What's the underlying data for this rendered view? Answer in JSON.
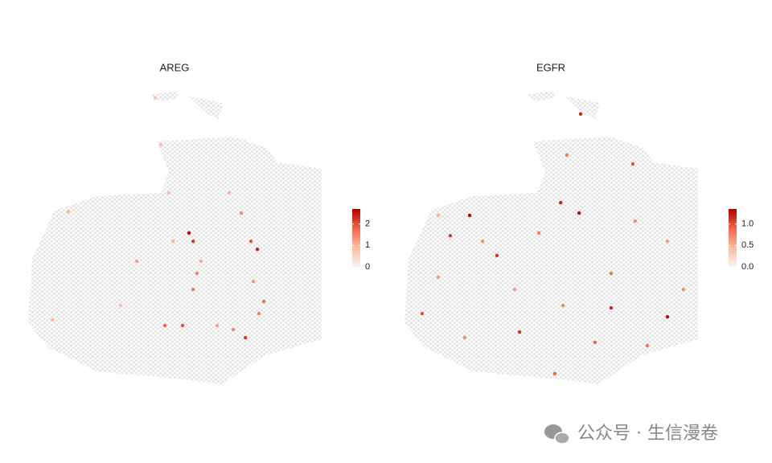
{
  "chart_data": [
    {
      "type": "scatter",
      "title": "AREG",
      "xlim": [
        0,
        100
      ],
      "ylim": [
        0,
        100
      ],
      "x": [
        54.8,
        56.2,
        46.6,
        52.6,
        74.0,
        78.1,
        78.6,
        72.6,
        56.2,
        37.0,
        45.2,
        68.5,
        8.2,
        13.7,
        43.3,
        57.5,
        49.3,
        64.4,
        69.9,
        76.7,
        80.3,
        31.5,
        58.9,
        75.9,
        47.9
      ],
      "y": [
        51.4,
        48.6,
        20.3,
        20.3,
        16.2,
        45.9,
        24.3,
        58.1,
        32.4,
        41.9,
        81.1,
        64.9,
        22.2,
        58.6,
        96.8,
        37.8,
        48.6,
        20.3,
        18.9,
        35.1,
        28.4,
        27.0,
        41.9,
        48.6,
        64.9
      ],
      "values": [
        2.6,
        2.2,
        1.8,
        2.0,
        2.2,
        2.4,
        1.5,
        1.4,
        1.6,
        1.2,
        0.8,
        1.0,
        0.9,
        1.0,
        0.8,
        1.5,
        1.0,
        1.2,
        1.4,
        1.3,
        1.7,
        0.8,
        1.1,
        1.9,
        0.9
      ],
      "colorbar": {
        "lim": [
          0,
          2.7
        ],
        "ticks": [
          0,
          1,
          2
        ],
        "colors": [
          "#f5f5f5",
          "#fcbba1",
          "#ef6548",
          "#b30000"
        ]
      }
    },
    {
      "type": "scatter",
      "title": "EGFR",
      "xlim": [
        0,
        100
      ],
      "ylim": [
        0,
        100
      ],
      "x": [
        60.0,
        22.2,
        15.6,
        53.2,
        59.5,
        31.5,
        77.8,
        89.6,
        70.4,
        39.2,
        6.0,
        51.2,
        82.7,
        64.9,
        26.6,
        45.8,
        95.0,
        11.5,
        55.3,
        78.6,
        70.4,
        20.5,
        37.5,
        54.0,
        89.6,
        11.5
      ],
      "y": [
        91.4,
        57.3,
        50.5,
        61.6,
        58.1,
        43.8,
        74.6,
        23.2,
        26.2,
        18.1,
        24.3,
        4.1,
        13.5,
        14.6,
        48.6,
        51.4,
        32.4,
        36.5,
        77.6,
        55.4,
        37.8,
        16.2,
        32.4,
        27.0,
        48.6,
        57.3
      ],
      "values": [
        1.2,
        1.3,
        1.1,
        1.2,
        1.3,
        1.1,
        1.0,
        1.3,
        1.2,
        1.1,
        1.0,
        0.9,
        0.8,
        0.9,
        0.7,
        0.8,
        0.7,
        0.6,
        0.8,
        0.7,
        0.8,
        0.7,
        0.6,
        0.7,
        0.6,
        0.5
      ],
      "colorbar": {
        "lim": [
          0,
          1.35
        ],
        "ticks": [
          {
            "value": 0,
            "label": "0.0"
          },
          0.5,
          {
            "value": 1,
            "label": "1.0"
          }
        ],
        "colors": [
          "#f5f5f5",
          "#fcbba1",
          "#ef6548",
          "#b30000"
        ]
      }
    }
  ],
  "watermark": "公众号 · 生信漫卷"
}
